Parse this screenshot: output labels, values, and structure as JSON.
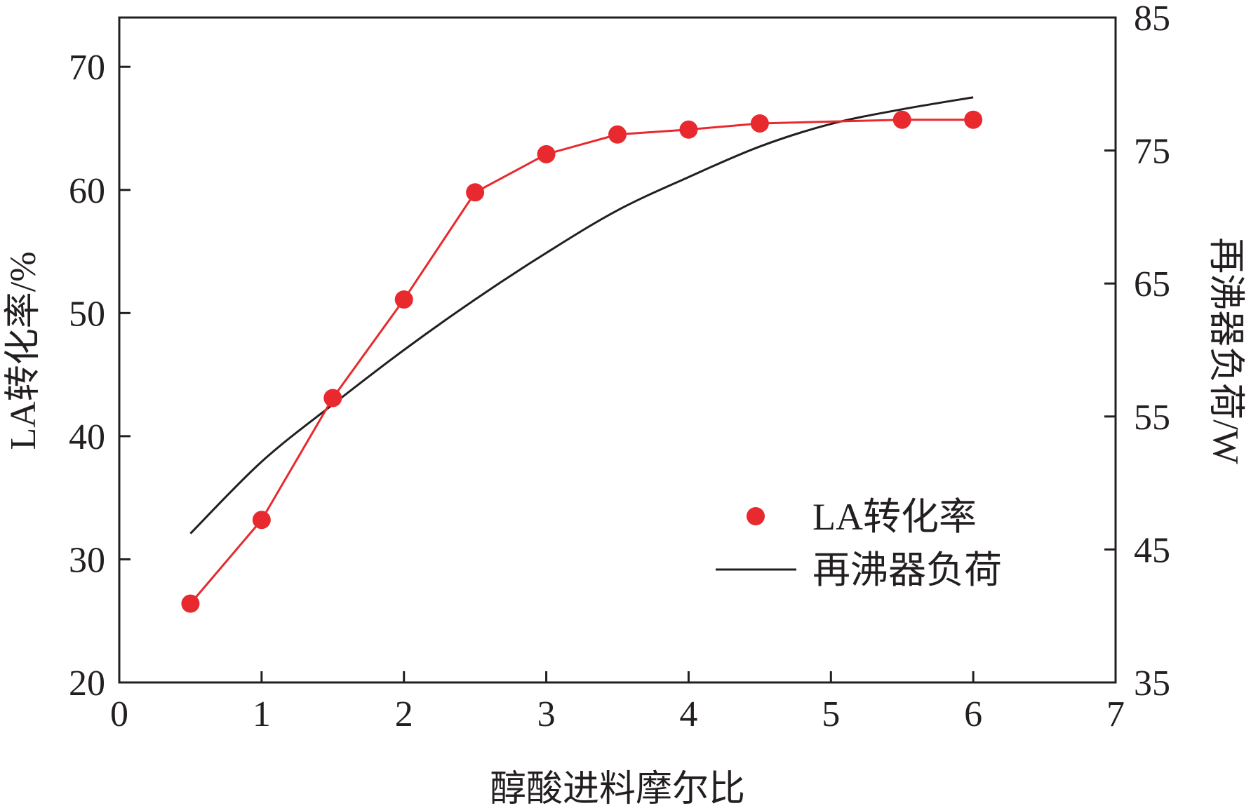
{
  "chart_data": {
    "type": "line",
    "xlabel": "醇酸进料摩尔比",
    "ylabel_left": "LA转化率/%",
    "ylabel_right": "再沸器负荷/W",
    "xlim": [
      0,
      7
    ],
    "ylim_left": [
      20,
      74
    ],
    "ylim_right": [
      35,
      85
    ],
    "x_ticks": [
      "0",
      "1",
      "2",
      "3",
      "4",
      "5",
      "6",
      "7"
    ],
    "y_left_ticks": [
      "20",
      "30",
      "40",
      "50",
      "60",
      "70"
    ],
    "y_right_ticks": [
      "35",
      "45",
      "55",
      "65",
      "75",
      "85"
    ],
    "grid": false,
    "legend_position": "center-right",
    "series": [
      {
        "name": "LA转化率",
        "axis": "left",
        "style": "line+markers",
        "color": "#e8292e",
        "x": [
          0.5,
          1.0,
          1.5,
          2.0,
          2.5,
          3.0,
          3.5,
          4.0,
          4.5,
          5.5,
          6.0
        ],
        "y": [
          26.4,
          33.2,
          43.1,
          51.1,
          59.8,
          62.9,
          64.5,
          64.9,
          65.4,
          65.7,
          65.7
        ]
      },
      {
        "name": "再沸器负荷",
        "axis": "right",
        "style": "line",
        "color": "#231f20",
        "x": [
          0.5,
          1.0,
          1.5,
          2.0,
          2.5,
          3.0,
          3.5,
          4.0,
          4.5,
          5.0,
          5.5,
          6.0
        ],
        "y": [
          46.2,
          51.6,
          55.9,
          60.0,
          63.8,
          67.3,
          70.5,
          73.0,
          75.3,
          77.0,
          78.1,
          79.0
        ]
      }
    ]
  }
}
